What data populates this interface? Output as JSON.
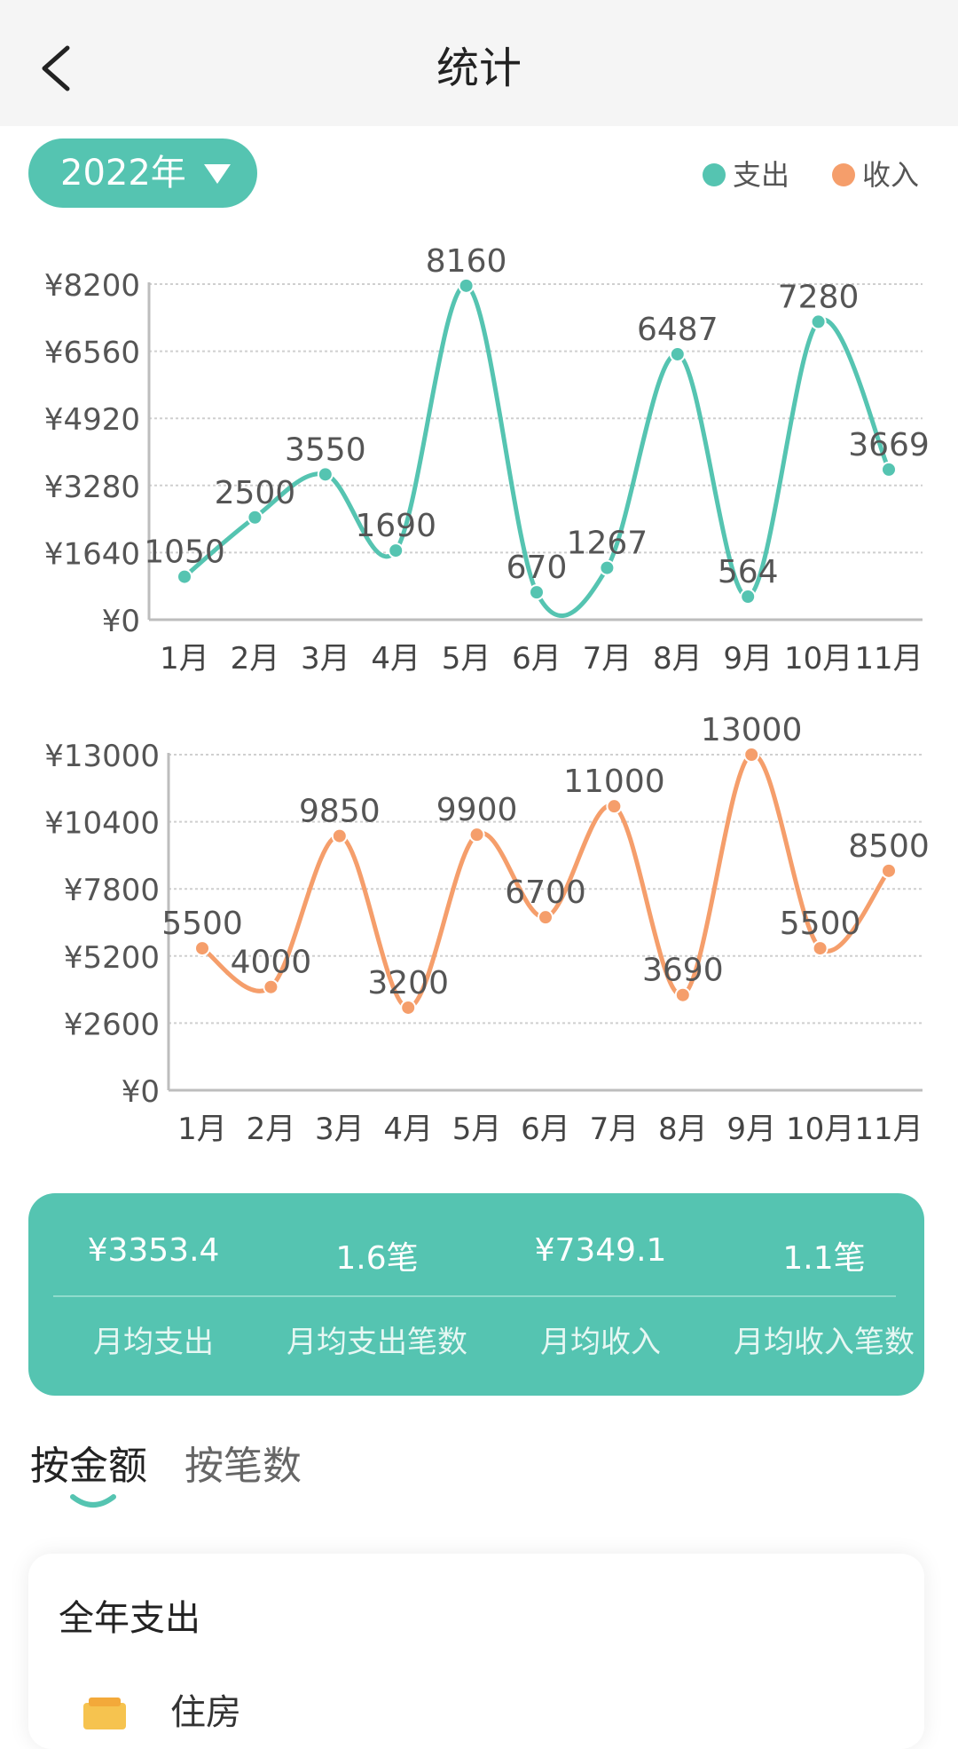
{
  "header": {
    "title": "统计"
  },
  "filter": {
    "year_label": "2022年"
  },
  "legend": [
    {
      "label": "支出",
      "color": "#55c4b1"
    },
    {
      "label": "收入",
      "color": "#f59e6b"
    }
  ],
  "chart_data": [
    {
      "type": "line",
      "categories": [
        "1月",
        "2月",
        "3月",
        "4月",
        "5月",
        "6月",
        "7月",
        "8月",
        "9月",
        "10月",
        "11月"
      ],
      "series": [
        {
          "name": "支出",
          "values": [
            1050,
            2500,
            3550,
            1690,
            8160,
            670,
            1267,
            6487,
            564,
            7280,
            3669
          ],
          "color": "#55c4b1"
        }
      ],
      "y_ticks": [
        "¥0",
        "¥1640",
        "¥3280",
        "¥4920",
        "¥6560",
        "¥8200"
      ],
      "ylim": [
        0,
        8200
      ],
      "grid": true
    },
    {
      "type": "line",
      "categories": [
        "1月",
        "2月",
        "3月",
        "4月",
        "5月",
        "6月",
        "7月",
        "8月",
        "9月",
        "10月",
        "11月"
      ],
      "series": [
        {
          "name": "收入",
          "values": [
            5500,
            4000,
            9850,
            3200,
            9900,
            6700,
            11000,
            3690,
            13000,
            5500,
            8500
          ],
          "color": "#f59e6b"
        }
      ],
      "y_ticks": [
        "¥0",
        "¥2600",
        "¥5200",
        "¥7800",
        "¥10400",
        "¥13000"
      ],
      "ylim": [
        0,
        13000
      ],
      "grid": true
    }
  ],
  "stats": [
    {
      "value": "¥3353.4",
      "label": "月均支出"
    },
    {
      "value": "1.6笔",
      "label": "月均支出笔数"
    },
    {
      "value": "¥7349.1",
      "label": "月均收入"
    },
    {
      "value": "1.1笔",
      "label": "月均收入笔数"
    }
  ],
  "tabs": [
    {
      "label": "按金额",
      "active": true
    },
    {
      "label": "按笔数",
      "active": false
    }
  ],
  "annual": {
    "title": "全年支出",
    "first_category": "住房"
  }
}
